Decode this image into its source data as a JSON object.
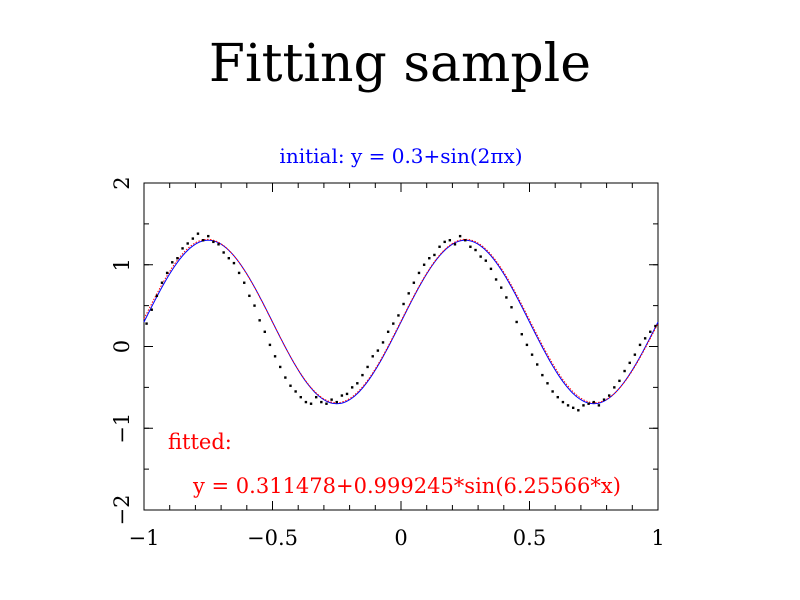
{
  "page": {
    "title": "Fitting sample"
  },
  "chart_data": {
    "type": "scatter",
    "xlim": [
      -1,
      1
    ],
    "ylim": [
      -2,
      2
    ],
    "xticks": [
      -1,
      -0.5,
      0,
      0.5,
      1
    ],
    "xtick_labels": [
      "−1",
      "−0.5",
      "0",
      "0.5",
      "1"
    ],
    "yticks": [
      -2,
      -1,
      0,
      1,
      2
    ],
    "ytick_labels": [
      "−2",
      "−1",
      "0",
      "1",
      "2"
    ],
    "grid": false,
    "annotations": {
      "initial": "initial: y = 0.3+sin(2πx)",
      "fitted_heading": "fitted:",
      "fitted_equation": "y = 0.311478+0.999245*sin(6.25566*x)"
    },
    "curves": [
      {
        "label_key": "initial",
        "color": "#0000ff",
        "offset": 0.3,
        "amplitude": 1.0,
        "frequency": 6.283185
      },
      {
        "label_key": "fitted",
        "color": "#ff0000",
        "offset": 0.311478,
        "amplitude": 0.999245,
        "frequency": 6.25566,
        "dotted": true
      }
    ],
    "series": [
      {
        "marker_color": "#000000",
        "points": [
          [
            -0.99,
            0.28
          ],
          [
            -0.97,
            0.45
          ],
          [
            -0.95,
            0.62
          ],
          [
            -0.93,
            0.78
          ],
          [
            -0.91,
            0.9
          ],
          [
            -0.89,
            1.03
          ],
          [
            -0.87,
            1.08
          ],
          [
            -0.85,
            1.2
          ],
          [
            -0.83,
            1.26
          ],
          [
            -0.81,
            1.32
          ],
          [
            -0.79,
            1.38
          ],
          [
            -0.77,
            1.3
          ],
          [
            -0.75,
            1.35
          ],
          [
            -0.73,
            1.28
          ],
          [
            -0.71,
            1.25
          ],
          [
            -0.69,
            1.15
          ],
          [
            -0.67,
            1.08
          ],
          [
            -0.65,
            1.02
          ],
          [
            -0.63,
            0.9
          ],
          [
            -0.61,
            0.78
          ],
          [
            -0.59,
            0.62
          ],
          [
            -0.57,
            0.5
          ],
          [
            -0.55,
            0.32
          ],
          [
            -0.53,
            0.18
          ],
          [
            -0.51,
            0.02
          ],
          [
            -0.49,
            -0.12
          ],
          [
            -0.47,
            -0.25
          ],
          [
            -0.45,
            -0.38
          ],
          [
            -0.43,
            -0.48
          ],
          [
            -0.41,
            -0.55
          ],
          [
            -0.39,
            -0.62
          ],
          [
            -0.37,
            -0.68
          ],
          [
            -0.35,
            -0.7
          ],
          [
            -0.33,
            -0.62
          ],
          [
            -0.31,
            -0.68
          ],
          [
            -0.29,
            -0.7
          ],
          [
            -0.27,
            -0.65
          ],
          [
            -0.25,
            -0.68
          ],
          [
            -0.23,
            -0.6
          ],
          [
            -0.21,
            -0.58
          ],
          [
            -0.19,
            -0.5
          ],
          [
            -0.17,
            -0.45
          ],
          [
            -0.15,
            -0.35
          ],
          [
            -0.13,
            -0.25
          ],
          [
            -0.11,
            -0.12
          ],
          [
            -0.09,
            -0.05
          ],
          [
            -0.07,
            0.05
          ],
          [
            -0.05,
            0.18
          ],
          [
            -0.03,
            0.28
          ],
          [
            -0.01,
            0.38
          ],
          [
            0.01,
            0.52
          ],
          [
            0.03,
            0.65
          ],
          [
            0.05,
            0.78
          ],
          [
            0.07,
            0.9
          ],
          [
            0.09,
            1.0
          ],
          [
            0.11,
            1.08
          ],
          [
            0.13,
            1.12
          ],
          [
            0.15,
            1.22
          ],
          [
            0.17,
            1.28
          ],
          [
            0.19,
            1.3
          ],
          [
            0.21,
            1.25
          ],
          [
            0.23,
            1.35
          ],
          [
            0.25,
            1.3
          ],
          [
            0.27,
            1.22
          ],
          [
            0.29,
            1.18
          ],
          [
            0.31,
            1.1
          ],
          [
            0.33,
            1.05
          ],
          [
            0.35,
            0.95
          ],
          [
            0.37,
            0.82
          ],
          [
            0.39,
            0.72
          ],
          [
            0.41,
            0.6
          ],
          [
            0.43,
            0.48
          ],
          [
            0.45,
            0.3
          ],
          [
            0.47,
            0.15
          ],
          [
            0.49,
            0.02
          ],
          [
            0.51,
            -0.1
          ],
          [
            0.53,
            -0.22
          ],
          [
            0.55,
            -0.35
          ],
          [
            0.57,
            -0.45
          ],
          [
            0.59,
            -0.55
          ],
          [
            0.61,
            -0.62
          ],
          [
            0.63,
            -0.68
          ],
          [
            0.65,
            -0.72
          ],
          [
            0.67,
            -0.75
          ],
          [
            0.69,
            -0.78
          ],
          [
            0.71,
            -0.72
          ],
          [
            0.73,
            -0.7
          ],
          [
            0.75,
            -0.68
          ],
          [
            0.77,
            -0.72
          ],
          [
            0.79,
            -0.65
          ],
          [
            0.81,
            -0.6
          ],
          [
            0.83,
            -0.5
          ],
          [
            0.85,
            -0.42
          ],
          [
            0.87,
            -0.3
          ],
          [
            0.89,
            -0.2
          ],
          [
            0.91,
            -0.1
          ],
          [
            0.93,
            0.02
          ],
          [
            0.95,
            0.1
          ],
          [
            0.97,
            0.18
          ],
          [
            0.99,
            0.25
          ]
        ]
      }
    ]
  }
}
